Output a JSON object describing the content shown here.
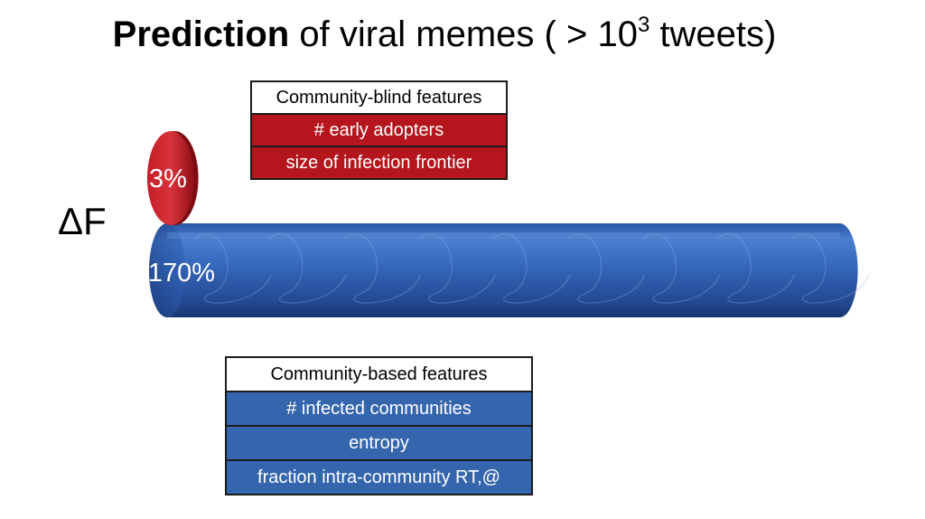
{
  "title": {
    "bold_part": "Prediction",
    "rest": " of viral memes ( > 10",
    "superscript": "3",
    "tail": " tweets)"
  },
  "axis_label": "ΔF",
  "chart_data": {
    "type": "bar",
    "orientation": "horizontal",
    "style": "3d-cylinder",
    "categories": [
      "Community-blind features",
      "Community-based features"
    ],
    "values": [
      3,
      170
    ],
    "value_labels": [
      "3%",
      "170%"
    ],
    "ylabel": "ΔF",
    "colors": [
      "#b5151c",
      "#2f5fb0"
    ]
  },
  "feature_groups": {
    "blind": {
      "header": "Community-blind features",
      "items": [
        "# early adopters",
        "size of infection frontier"
      ],
      "color": "#b5151c"
    },
    "based": {
      "header": "Community-based features",
      "items": [
        "# infected communities",
        "entropy",
        "fraction intra-community RT,@"
      ],
      "color": "#3566ad"
    }
  }
}
